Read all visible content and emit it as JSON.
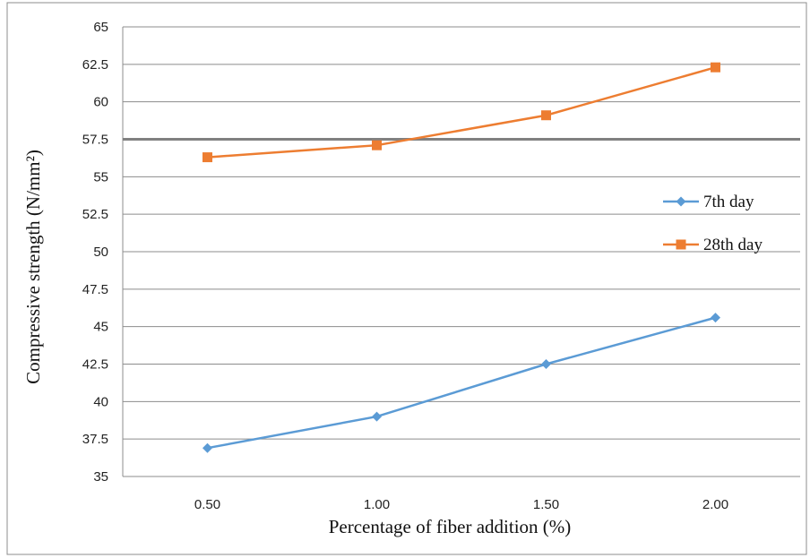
{
  "chart_data": {
    "type": "line",
    "title": "",
    "xlabel": "Percentage of fiber addition (%)",
    "ylabel": "Compressive strength (N/mm²)",
    "categories": [
      "0.50",
      "1.00",
      "1.50",
      "2.00"
    ],
    "ylim": [
      35,
      65
    ],
    "yticks": [
      "65",
      "62.5",
      "60",
      "57.5",
      "55",
      "52.5",
      "50",
      "47.5",
      "45",
      "42.5",
      "40",
      "37.5",
      "35"
    ],
    "grid": true,
    "legend_position": "right",
    "series": [
      {
        "name": "7th day",
        "values": [
          36.9,
          39.0,
          42.5,
          45.6
        ],
        "color": "#5B9BD5",
        "marker": "diamond"
      },
      {
        "name": "28th day",
        "values": [
          56.3,
          57.1,
          59.1,
          62.3
        ],
        "color": "#ED7D31",
        "marker": "square"
      }
    ],
    "reference_line": {
      "value": 57.5,
      "color": "#808080"
    }
  }
}
